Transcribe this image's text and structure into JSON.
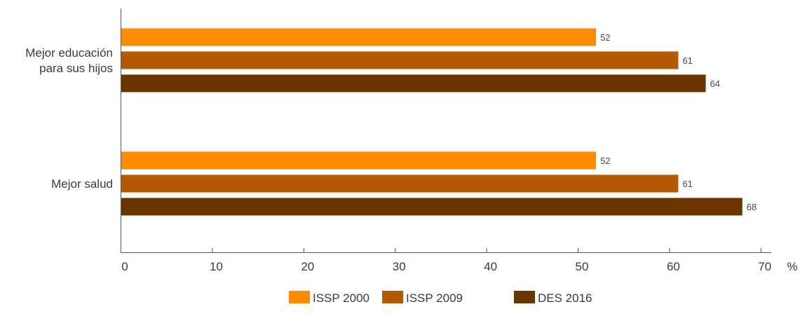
{
  "chart_data": {
    "type": "bar",
    "orientation": "horizontal",
    "categories": [
      [
        "Mejor educación",
        "para sus hijos"
      ],
      [
        "Mejor salud"
      ]
    ],
    "series": [
      {
        "name": "ISSP 2000",
        "color": "#FF8C00",
        "values": [
          52,
          52
        ]
      },
      {
        "name": "ISSP 2009",
        "color": "#B35A00",
        "values": [
          61,
          61
        ]
      },
      {
        "name": "DES 2016",
        "color": "#6B3500",
        "values": [
          64,
          68
        ]
      }
    ],
    "value_axis": {
      "min": 0,
      "max": 70,
      "ticks": [
        0,
        10,
        20,
        30,
        40,
        50,
        60,
        70
      ],
      "unit": "%"
    },
    "grid": false,
    "legend_position": "bottom"
  }
}
